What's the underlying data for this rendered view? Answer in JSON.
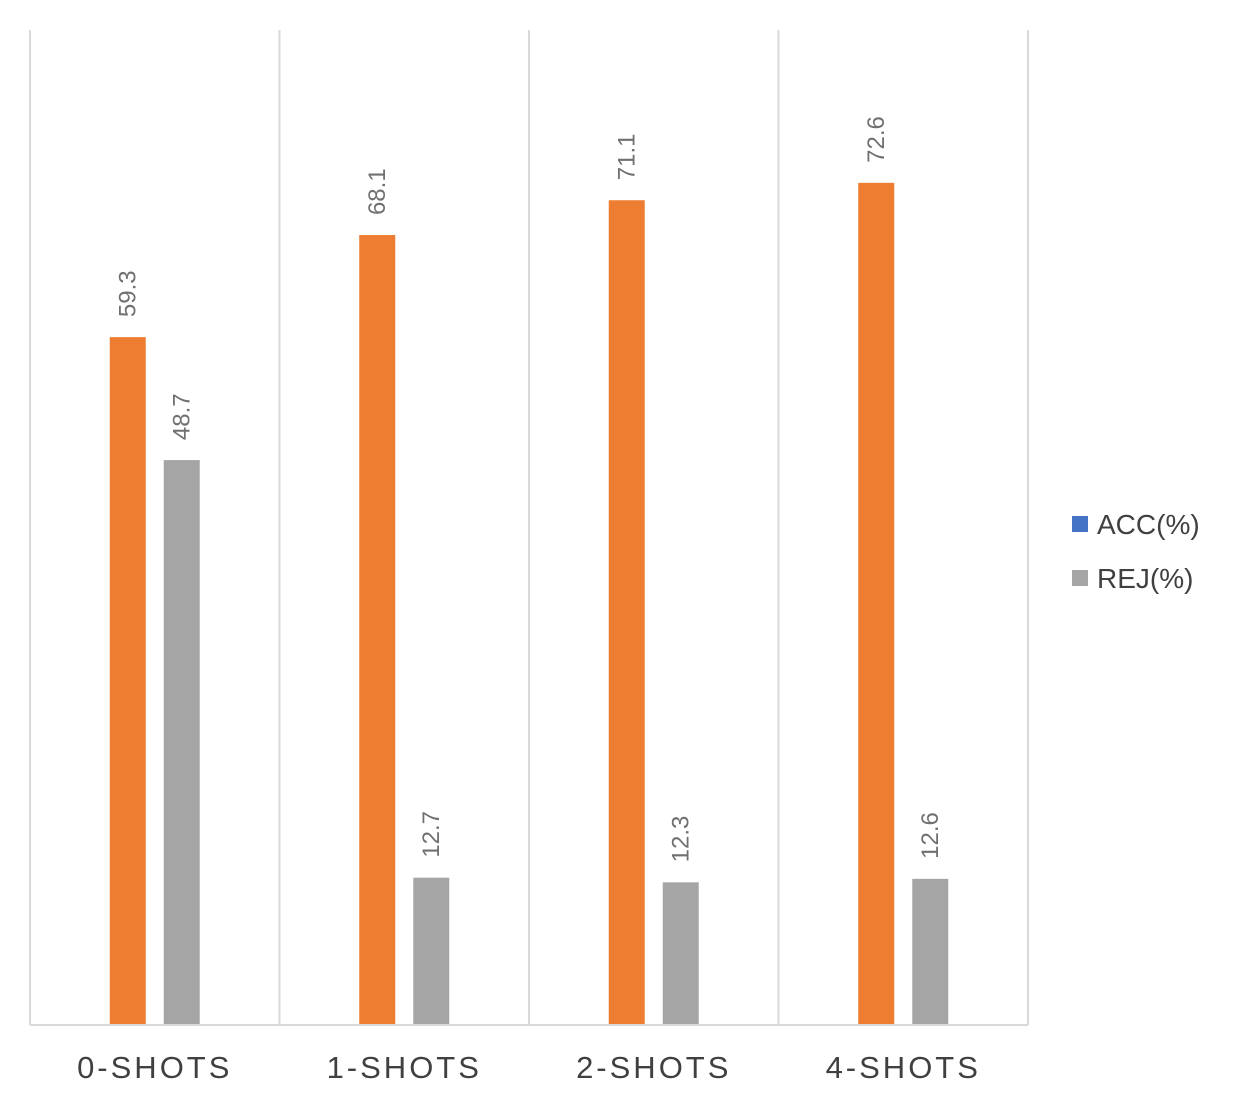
{
  "chart_data": {
    "type": "bar",
    "categories": [
      "0-SHOTS",
      "1-SHOTS",
      "2-SHOTS",
      "4-SHOTS"
    ],
    "series": [
      {
        "name": "ACC(%)",
        "values": [
          59.3,
          68.1,
          71.1,
          72.6
        ],
        "bar_color": "#ed7d31",
        "legend_color": "#4472c4"
      },
      {
        "name": "REJ(%)",
        "values": [
          48.7,
          12.7,
          12.3,
          12.6
        ],
        "bar_color": "#a5a5a5",
        "legend_color": "#a5a5a5"
      }
    ],
    "ylim": [
      0,
      85
    ],
    "gridlines": "vertical category separators",
    "legend_position": "right",
    "data_labels": "rotated above bars"
  }
}
